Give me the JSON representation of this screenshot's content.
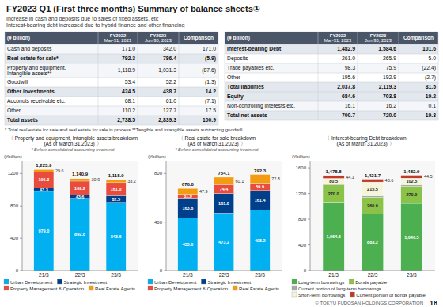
{
  "title": "FY2023 Q1 (First three months) Summary of balance sheets①",
  "subtitles": [
    "Increase in cash and deposits due to sales of fixed assets, etc",
    "Interest-bearing debt increased due to hybrid finance and other financing"
  ],
  "tables": [
    {
      "headers": [
        "(¥ billion)",
        "FY2022\nMar-31, 2023",
        "FY2023\nJun-30, 2023",
        "Comparison"
      ],
      "rows": [
        [
          "Cash and deposits",
          "171.0",
          "342.0",
          "171.0"
        ],
        [
          "Real estate for sale*",
          "792.3",
          "786.4",
          "(5.9)"
        ],
        [
          "Property and equipment,\nIntangible assets**",
          "1,118.9",
          "1,031.3",
          "(87.6)"
        ],
        [
          "Goodwill",
          "53.4",
          "52.2",
          "(1.3)"
        ],
        [
          "Other investments",
          "424.5",
          "438.7",
          "14.2"
        ],
        [
          "Acconuts receivable etc.",
          "68.1",
          "61.0",
          "(7.1)"
        ],
        [
          "Other",
          "110.2",
          "127.7",
          "17.5"
        ],
        [
          "Total assets",
          "2,738.5",
          "2,839.3",
          "100.9"
        ]
      ],
      "bold_rows": [
        1,
        4,
        7
      ]
    },
    {
      "headers": [
        "(¥ billion)",
        "FY2022\nMar-31, 2023",
        "FY2023\nJun-30, 2023",
        "Comparison"
      ],
      "rows": [
        [
          "Interest-bearing Debt",
          "1,482.9",
          "1,584.6",
          "101.6"
        ],
        [
          "Deposits",
          "261.0",
          "265.9",
          "5.0"
        ],
        [
          "Trade payables etc.",
          "98.3",
          "75.9",
          "(22.4)"
        ],
        [
          "Other",
          "195.6",
          "192.9",
          "(2.7)"
        ],
        [
          "Total liabilities",
          "2,037.8",
          "2,119.3",
          "81.5"
        ],
        [
          "Equity",
          "684.6",
          "703.8",
          "19.2"
        ],
        [
          "Non-controlling interests etc.",
          "16.1",
          "16.2",
          "0.1"
        ],
        [
          "Total net assets",
          "700.7",
          "720.0",
          "19.3"
        ]
      ],
      "bold_rows": [
        0,
        4,
        5,
        7
      ]
    }
  ],
  "footnote": "* Total real estate for sale and real estate for sale in process  **Tangible and intangible assets subtracting goodwill",
  "footer": "© TOKYU FUDOSAN HOLDINGS CORPORATION",
  "page": "18",
  "chart_data": [
    {
      "type": "bar",
      "stacked": true,
      "data_labels": true,
      "grid": false,
      "legend": "bottom",
      "title": "〈 Property and equipment, Intangible assets breakdown\n(As of March 31,2023) 〉",
      "subtitle": "* Before consolidated accounting treatment",
      "ylabel": "(¥billion)",
      "categories": [
        "21/3",
        "22/3",
        "23/3"
      ],
      "ylim": [
        0,
        1350
      ],
      "yticks": [
        0,
        400,
        800,
        1200
      ],
      "series": [
        {
          "name": "Urban Development",
          "color": "#00b0f0",
          "values": [
            979.0,
            892.8,
            843.6
          ],
          "value_labels": [
            "979.0",
            "892.8",
            "843.6"
          ]
        },
        {
          "name": "Strategic Investment",
          "color": "#003f8a",
          "values": [
            43.3,
            43.6,
            82.5
          ],
          "value_labels": [
            "43.3",
            "43.6",
            "82.5"
          ]
        },
        {
          "name": "Property Management & Operation",
          "color": "#e74c3c",
          "values": [
            196.3,
            169.2,
            161.0
          ],
          "value_labels": [
            "196.3",
            "169.2",
            "161.0"
          ]
        },
        {
          "name": "Real Estate Agents",
          "color": "#f39c12",
          "values": [
            29.6,
            30.9,
            33.2
          ],
          "value_labels": [
            "29.6",
            "30.9",
            "33.2"
          ]
        }
      ],
      "totals": [
        1223.9,
        1140.9,
        1118.9
      ],
      "total_labels": [
        "1,223.9",
        "1,140.9",
        "1,118.9"
      ]
    },
    {
      "type": "bar",
      "stacked": true,
      "data_labels": true,
      "grid": false,
      "legend": "bottom",
      "title": "〈 Real estate for sale breakdown\n(As of March 31,2023) 〉",
      "subtitle": "* Before consolidated accounting treatment",
      "ylabel": "(¥billion)",
      "categories": [
        "21/3",
        "22/3",
        "23/3"
      ],
      "ylim": [
        0,
        900
      ],
      "yticks": [
        0,
        400,
        800
      ],
      "series": [
        {
          "name": "Urban Development",
          "color": "#00b0f0",
          "values": [
            433.0,
            473.2,
            498.2
          ],
          "value_labels": [
            "433.0",
            "473.2",
            "498.2"
          ]
        },
        {
          "name": "Strategic Investment",
          "color": "#003f8a",
          "values": [
            163.8,
            161.8,
            161.4
          ],
          "value_labels": [
            "163.8",
            "161.8",
            "161.4"
          ]
        },
        {
          "name": "Property Management & Operation",
          "color": "#e74c3c",
          "values": [
            31.9,
            74.4,
            59.9
          ],
          "value_labels": [
            "31.9",
            "74.4",
            "59.9"
          ]
        },
        {
          "name": "Real Estate Agents",
          "color": "#f39c12",
          "values": [
            47.9,
            60.1,
            72.8
          ],
          "value_labels": [
            "47.9",
            "60.1",
            "72.8"
          ]
        }
      ],
      "totals": [
        676.0,
        754.1,
        792.3
      ],
      "total_labels": [
        "676.0",
        "754.1",
        "792.3"
      ]
    },
    {
      "type": "bar",
      "stacked": true,
      "data_labels": true,
      "grid": false,
      "legend": "bottom",
      "title": "〈 Interest-bearing Debt breakdown\n(As of March 31,2023) 〉",
      "ylabel": "(¥billion)",
      "categories": [
        "21/3",
        "22/3",
        "23/3"
      ],
      "ylim": [
        0,
        1700
      ],
      "yticks": [
        0,
        400,
        800,
        1200,
        1600
      ],
      "series": [
        {
          "name": "Long-term borrowings",
          "color": "#4caf50",
          "values": [
            1064.8,
            883.2,
            1046.5
          ],
          "value_labels": [
            "1,064.8",
            "883.2",
            "1,046.5"
          ]
        },
        {
          "name": "Bonds payable",
          "color": "#8bc34a",
          "values": [
            270.0,
            260.0,
            270.0
          ],
          "value_labels": [
            "270.0",
            "260.0",
            "270.0"
          ]
        },
        {
          "name": "Current portion of long-term borrowings",
          "color": "#a9a9a9",
          "values": [
            20.0,
            20.0,
            20.0
          ],
          "value_labels": [
            null,
            null,
            null
          ]
        },
        {
          "name": "Short-term borrowings",
          "color": "#f5f5dc",
          "values": [
            80.5,
            215.5,
            102.5
          ],
          "value_labels": [
            "80.5",
            "215.5",
            "102.5"
          ]
        },
        {
          "name": "Current portion of bonds payable",
          "color": "#c0392b",
          "values": [
            44.1,
            43.6,
            44.5
          ],
          "value_labels": [
            "44.1",
            "43.6",
            "44.5"
          ]
        }
      ],
      "totals": [
        1478.8,
        1421.7,
        1482.9
      ],
      "total_labels": [
        "1,478.8",
        "1,421.7",
        "1,482.9"
      ]
    }
  ]
}
